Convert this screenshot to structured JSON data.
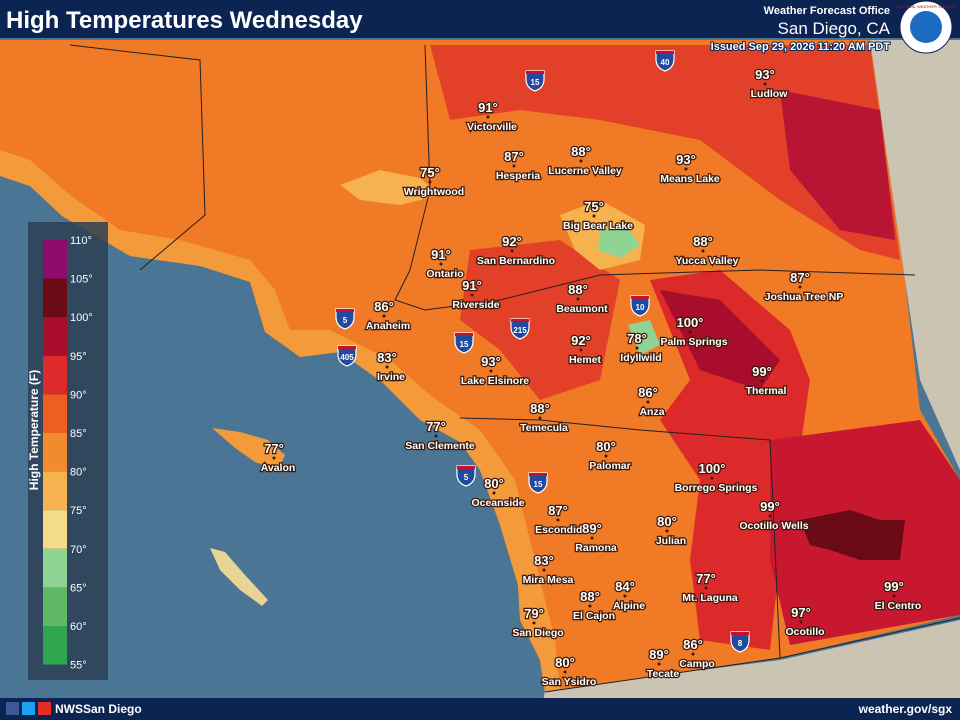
{
  "header": {
    "title": "High Temperatures Wednesday",
    "office": "Weather Forecast Office",
    "location": "San Diego, CA",
    "issued": "Issued Sep 29, 2026 11:20 AM PDT",
    "seal": "NATIONAL WEATHER SERVICE"
  },
  "legend": {
    "title": "High Temperature (F)",
    "labels": [
      "110°",
      "105°",
      "100°",
      "95°",
      "90°",
      "85°",
      "80°",
      "75°",
      "70°",
      "65°",
      "60°",
      "55°"
    ],
    "colors": [
      "#8e0b6c",
      "#6a0a14",
      "#a80d2c",
      "#dc2a2a",
      "#ee5e22",
      "#f28a2e",
      "#f6b24e",
      "#f4dc8c",
      "#8fd493",
      "#5fb866",
      "#2fa64e"
    ]
  },
  "cities": [
    {
      "temp": "91°",
      "name": "Victorville"
    },
    {
      "temp": "93°",
      "name": "Ludlow"
    },
    {
      "temp": "87°",
      "name": "Hesperia"
    },
    {
      "temp": "88°",
      "name": "Lucerne Valley"
    },
    {
      "temp": "93°",
      "name": "Means Lake"
    },
    {
      "temp": "75°",
      "name": "Wrightwood"
    },
    {
      "temp": "75°",
      "name": "Big Bear Lake"
    },
    {
      "temp": "92°",
      "name": "San Bernardino"
    },
    {
      "temp": "88°",
      "name": "Yucca Valley"
    },
    {
      "temp": "91°",
      "name": "Ontario"
    },
    {
      "temp": "87°",
      "name": "Joshua Tree NP"
    },
    {
      "temp": "91°",
      "name": "Riverside"
    },
    {
      "temp": "88°",
      "name": "Beaumont"
    },
    {
      "temp": "86°",
      "name": "Anaheim"
    },
    {
      "temp": "100°",
      "name": "Palm Springs"
    },
    {
      "temp": "78°",
      "name": "Idyllwild"
    },
    {
      "temp": "92°",
      "name": "Hemet"
    },
    {
      "temp": "83°",
      "name": "Irvine"
    },
    {
      "temp": "93°",
      "name": "Lake Elsinore"
    },
    {
      "temp": "99°",
      "name": "Thermal"
    },
    {
      "temp": "86°",
      "name": "Anza"
    },
    {
      "temp": "88°",
      "name": "Temecula"
    },
    {
      "temp": "77°",
      "name": "San Clemente"
    },
    {
      "temp": "77°",
      "name": "Avalon"
    },
    {
      "temp": "80°",
      "name": "Palomar"
    },
    {
      "temp": "100°",
      "name": "Borrego Springs"
    },
    {
      "temp": "80°",
      "name": "Oceanside"
    },
    {
      "temp": "99°",
      "name": "Ocotillo Wells"
    },
    {
      "temp": "87°",
      "name": "Escondido"
    },
    {
      "temp": "89°",
      "name": "Ramona"
    },
    {
      "temp": "80°",
      "name": "Julian"
    },
    {
      "temp": "83°",
      "name": "Mira Mesa"
    },
    {
      "temp": "88°",
      "name": "El Cajon"
    },
    {
      "temp": "84°",
      "name": "Alpine"
    },
    {
      "temp": "77°",
      "name": "Mt. Laguna"
    },
    {
      "temp": "99°",
      "name": "El Centro"
    },
    {
      "temp": "97°",
      "name": "Ocotillo"
    },
    {
      "temp": "79°",
      "name": "San Diego"
    },
    {
      "temp": "86°",
      "name": "Campo"
    },
    {
      "temp": "89°",
      "name": "Tecate"
    },
    {
      "temp": "80°",
      "name": "San Ysidro"
    }
  ],
  "highways": [
    "15",
    "40",
    "5",
    "405",
    "215",
    "15",
    "10",
    "5",
    "15",
    "8"
  ],
  "footer": {
    "social": "NWSSan Diego",
    "url": "weather.gov/sgx"
  }
}
